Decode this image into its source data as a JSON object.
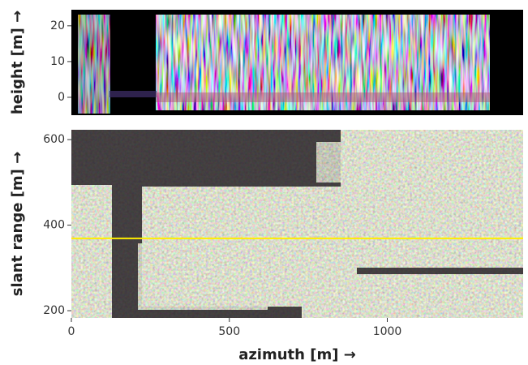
{
  "chart_data": [
    {
      "type": "image",
      "ylabel": "height [m] →",
      "xlim": [
        0,
        1430
      ],
      "ylim": [
        -5,
        24.5
      ],
      "yticks": [
        0,
        10,
        20
      ]
    },
    {
      "type": "image",
      "ylabel": "slant range [m] →",
      "xlabel": "azimuth [m] →",
      "xlim": [
        0,
        1430
      ],
      "xticks": [
        0,
        500,
        1000
      ],
      "ylim": [
        183,
        623
      ],
      "yticks": [
        200,
        400,
        600
      ],
      "hline": 369,
      "hline_color": "#ffee00"
    }
  ]
}
